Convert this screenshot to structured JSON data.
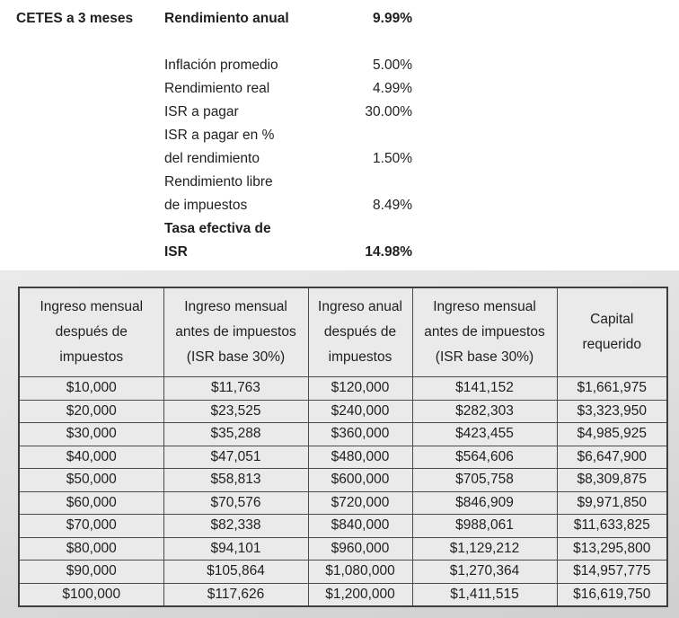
{
  "summary": {
    "instrument": "CETES a 3 meses",
    "rows": [
      {
        "label": "Rendimiento anual",
        "value": "9.99%",
        "bold": true
      },
      {
        "label": "",
        "value": "",
        "bold": false
      },
      {
        "label": "Inflación promedio",
        "value": "5.00%",
        "bold": false
      },
      {
        "label": "Rendimiento real",
        "value": "4.99%",
        "bold": false
      },
      {
        "label": "ISR a pagar",
        "value": "30.00%",
        "bold": false
      },
      {
        "label": "ISR a pagar en %",
        "value": "",
        "bold": false
      },
      {
        "label": "del rendimiento",
        "value": "1.50%",
        "bold": false
      },
      {
        "label": "Rendimiento libre",
        "value": "",
        "bold": false
      },
      {
        "label": "de impuestos",
        "value": "8.49%",
        "bold": false
      },
      {
        "label": "Tasa efectiva de",
        "value": "",
        "bold": true
      },
      {
        "label": "ISR",
        "value": "14.98%",
        "bold": true
      }
    ]
  },
  "table": {
    "headers": [
      "Ingreso mensual\ndespués de\nimpuestos",
      "Ingreso mensual\nantes de impuestos\n(ISR base 30%)",
      "Ingreso anual\ndespués de\nimpuestos",
      "Ingreso mensual\nantes de impuestos\n(ISR base 30%)",
      "Capital\nrequerido"
    ],
    "rows": [
      [
        "$10,000",
        "$11,763",
        "$120,000",
        "$141,152",
        "$1,661,975"
      ],
      [
        "$20,000",
        "$23,525",
        "$240,000",
        "$282,303",
        "$3,323,950"
      ],
      [
        "$30,000",
        "$35,288",
        "$360,000",
        "$423,455",
        "$4,985,925"
      ],
      [
        "$40,000",
        "$47,051",
        "$480,000",
        "$564,606",
        "$6,647,900"
      ],
      [
        "$50,000",
        "$58,813",
        "$600,000",
        "$705,758",
        "$8,309,875"
      ],
      [
        "$60,000",
        "$70,576",
        "$720,000",
        "$846,909",
        "$9,971,850"
      ],
      [
        "$70,000",
        "$82,338",
        "$840,000",
        "$988,061",
        "$11,633,825"
      ],
      [
        "$80,000",
        "$94,101",
        "$960,000",
        "$1,129,212",
        "$13,295,800"
      ],
      [
        "$90,000",
        "$105,864",
        "$1,080,000",
        "$1,270,364",
        "$14,957,775"
      ],
      [
        "$100,000",
        "$117,626",
        "$1,200,000",
        "$1,411,515",
        "$16,619,750"
      ]
    ]
  },
  "colors": {
    "text": "#1f1f1f",
    "table_border": "#4a4a4a",
    "cell_background": "#eaeaea",
    "panel_background": "#d9d9d9",
    "page_background": "#ffffff"
  }
}
